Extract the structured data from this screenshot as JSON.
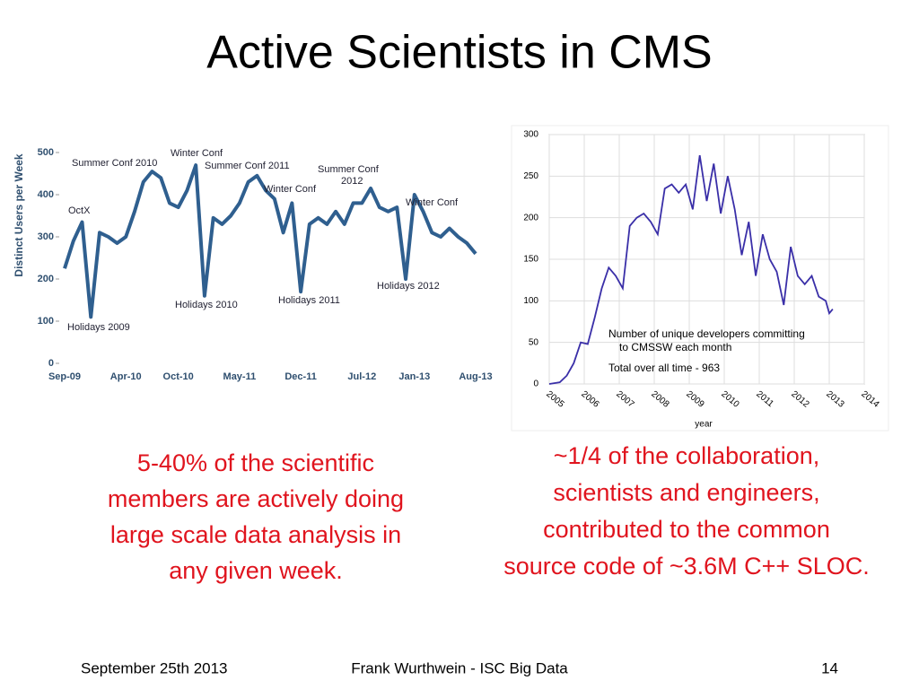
{
  "title": "Active Scientists in CMS",
  "caption_left": [
    "5-40% of the scientific",
    "members are actively doing",
    "large scale data analysis in",
    "any given week."
  ],
  "caption_right": [
    "~1/4 of the collaboration,",
    "scientists and engineers,",
    "contributed to the common",
    "source code of ~3.6M C++ SLOC."
  ],
  "footer": {
    "date": "September 25th 2013",
    "author": "Frank Wurthwein - ISC Big Data",
    "page": "14"
  },
  "chart_data": [
    {
      "type": "line",
      "ylabel": "Distinct Users per Week",
      "categories": [
        "Sep-09",
        null,
        null,
        null,
        null,
        null,
        null,
        "Apr-10",
        null,
        null,
        null,
        null,
        null,
        "Oct-10",
        null,
        null,
        null,
        null,
        null,
        null,
        "May-11",
        null,
        null,
        null,
        null,
        null,
        null,
        "Dec-11",
        null,
        null,
        null,
        null,
        null,
        null,
        "Jul-12",
        null,
        null,
        null,
        null,
        null,
        "Jan-13",
        null,
        null,
        null,
        null,
        null,
        null,
        "Aug-13"
      ],
      "series": [
        {
          "name": "Distinct Users per Week",
          "color": "#2f5f8f",
          "values": [
            225,
            290,
            335,
            110,
            310,
            300,
            285,
            300,
            360,
            430,
            455,
            440,
            380,
            370,
            410,
            470,
            160,
            345,
            330,
            350,
            380,
            430,
            445,
            410,
            390,
            310,
            380,
            170,
            330,
            345,
            330,
            360,
            330,
            380,
            380,
            415,
            370,
            360,
            370,
            200,
            400,
            360,
            310,
            300,
            320,
            300,
            285,
            260
          ]
        }
      ],
      "ylim": [
        0,
        500
      ],
      "yticks": [
        0,
        100,
        200,
        300,
        400,
        500
      ],
      "grid": false,
      "annotations": [
        "Summer Conf 2010",
        "Winter Conf",
        "Summer Conf 2011",
        "Summer Conf",
        "2012",
        "Winter Conf",
        "OctX",
        "Winter Conf",
        "Holidays 2009",
        "Holidays 2010",
        "Holidays 2011",
        "Holidays 2012"
      ]
    },
    {
      "type": "line",
      "xlabel": "year",
      "x": [
        2005.0,
        2005.3,
        2005.5,
        2005.7,
        2005.9,
        2006.1,
        2006.3,
        2006.5,
        2006.7,
        2006.9,
        2007.1,
        2007.3,
        2007.5,
        2007.7,
        2007.9,
        2008.1,
        2008.3,
        2008.5,
        2008.7,
        2008.9,
        2009.1,
        2009.3,
        2009.5,
        2009.7,
        2009.9,
        2010.1,
        2010.3,
        2010.5,
        2010.7,
        2010.9,
        2011.1,
        2011.3,
        2011.5,
        2011.7,
        2011.9,
        2012.1,
        2012.3,
        2012.5,
        2012.7,
        2012.9,
        2013.0,
        2013.1
      ],
      "series": [
        {
          "name": "Number of unique developers",
          "color": "#3a2fa8",
          "values": [
            0,
            2,
            10,
            25,
            50,
            48,
            80,
            115,
            140,
            130,
            115,
            190,
            200,
            205,
            195,
            180,
            235,
            240,
            230,
            240,
            210,
            275,
            220,
            265,
            205,
            250,
            210,
            155,
            195,
            130,
            180,
            150,
            135,
            95,
            165,
            130,
            120,
            130,
            105,
            100,
            85,
            90
          ]
        }
      ],
      "xlim": [
        2005,
        2014
      ],
      "xticks": [
        2005,
        2006,
        2007,
        2008,
        2009,
        2010,
        2011,
        2012,
        2013,
        2014
      ],
      "ylim": [
        0,
        300
      ],
      "yticks": [
        0,
        50,
        100,
        150,
        200,
        250,
        300
      ],
      "grid": true,
      "annotations": [
        "Number of unique developers committing",
        "to CMSSW each month",
        "Total over all time - 963"
      ]
    }
  ]
}
